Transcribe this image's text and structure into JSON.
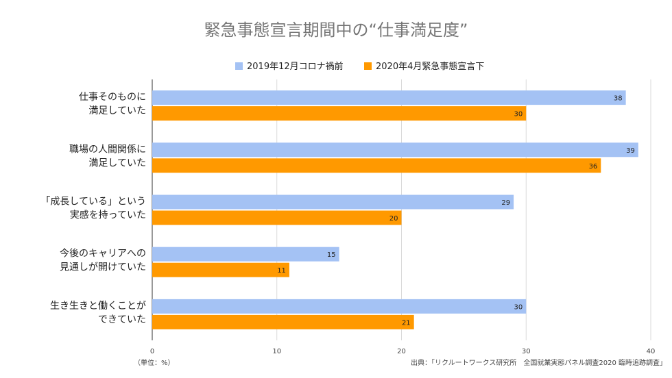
{
  "chart_data": {
    "type": "bar",
    "orientation": "horizontal",
    "title": "緊急事態宣言期間中の“仕事満足度”",
    "categories": [
      [
        "仕事そのものに",
        "満足していた"
      ],
      [
        "職場の人間関係に",
        "満足していた"
      ],
      [
        "「成長している」という",
        "実感を持っていた"
      ],
      [
        "今後のキャリアへの",
        "見通しが開けていた"
      ],
      [
        "生き生きと働くことが",
        "できていた"
      ]
    ],
    "series": [
      {
        "name": "2019年12月コロナ禍前",
        "color": "#a4c2f4",
        "values": [
          38,
          39,
          29,
          15,
          30
        ]
      },
      {
        "name": "2020年4月緊急事態宣言下",
        "color": "#ff9900",
        "values": [
          30,
          36,
          20,
          11,
          21
        ]
      }
    ],
    "xlim": [
      0,
      40
    ],
    "xticks": [
      0,
      10,
      20,
      30,
      40
    ],
    "grid": true,
    "legend_position": "top",
    "unit_note": "（単位：%）",
    "source": "出典：「リクルートワークス研究所　全国就業実態パネル調査2020 臨時追跡調査」"
  }
}
